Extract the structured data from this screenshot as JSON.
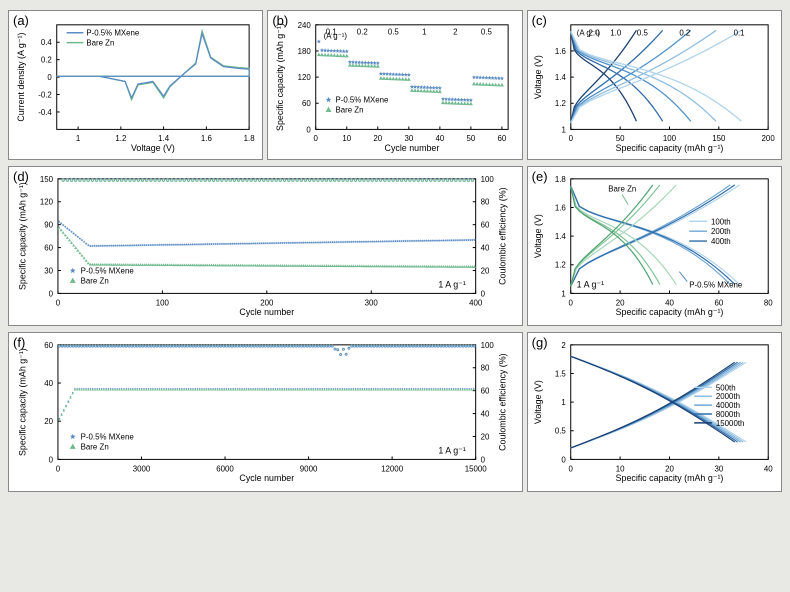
{
  "colors": {
    "mxene": "#5a8bc4",
    "zn": "#6fb98f",
    "axis": "#000000",
    "bg": "#ffffff",
    "page_bg": "#e8e8e4",
    "rate_colors": [
      "#afd3ec",
      "#8fbde0",
      "#6fa7d4",
      "#4f91c8",
      "#2f6ba8",
      "#1a3f70"
    ]
  },
  "panels": {
    "a": {
      "label": "(a)",
      "type": "line",
      "xlabel": "Voltage (V)",
      "ylabel": "Current density (A g⁻¹)",
      "xlim": [
        0.9,
        1.8
      ],
      "xticks": [
        1.0,
        1.2,
        1.4,
        1.6,
        1.8
      ],
      "ylim": [
        -0.6,
        0.6
      ],
      "yticks": [
        -0.4,
        -0.2,
        0.0,
        0.2,
        0.4
      ],
      "legend": [
        {
          "label": "P-0.5% MXene",
          "color": "#5a8bc4"
        },
        {
          "label": "Bare Zn",
          "color": "#6fb98f"
        }
      ],
      "series": {
        "mxene": [
          [
            0.9,
            0.01
          ],
          [
            1.1,
            0.01
          ],
          [
            1.22,
            -0.05
          ],
          [
            1.25,
            -0.24
          ],
          [
            1.28,
            -0.08
          ],
          [
            1.35,
            -0.05
          ],
          [
            1.4,
            -0.22
          ],
          [
            1.43,
            -0.1
          ],
          [
            1.5,
            0.05
          ],
          [
            1.55,
            0.15
          ],
          [
            1.58,
            0.5
          ],
          [
            1.62,
            0.22
          ],
          [
            1.68,
            0.12
          ],
          [
            1.75,
            0.1
          ],
          [
            1.8,
            0.09
          ],
          [
            1.8,
            0.01
          ],
          [
            0.9,
            0.01
          ]
        ],
        "zn": [
          [
            0.9,
            0.01
          ],
          [
            1.1,
            0.01
          ],
          [
            1.22,
            -0.05
          ],
          [
            1.25,
            -0.26
          ],
          [
            1.28,
            -0.09
          ],
          [
            1.35,
            -0.06
          ],
          [
            1.4,
            -0.24
          ],
          [
            1.43,
            -0.11
          ],
          [
            1.5,
            0.05
          ],
          [
            1.55,
            0.16
          ],
          [
            1.58,
            0.53
          ],
          [
            1.62,
            0.23
          ],
          [
            1.68,
            0.13
          ],
          [
            1.75,
            0.11
          ],
          [
            1.8,
            0.1
          ],
          [
            1.8,
            0.01
          ],
          [
            0.9,
            0.01
          ]
        ]
      }
    },
    "b": {
      "label": "(b)",
      "type": "scatter",
      "xlabel": "Cycle number",
      "ylabel": "Specific capacity (mAh g⁻¹)",
      "xlim": [
        0,
        62
      ],
      "xticks": [
        0,
        10,
        20,
        30,
        40,
        50,
        60
      ],
      "ylim": [
        0,
        240
      ],
      "yticks": [
        0,
        60,
        120,
        180,
        240
      ],
      "rate_labels": [
        "0.1",
        "0.2",
        "0.5",
        "1",
        "2",
        "0.5"
      ],
      "rate_header": "(A g⁻¹)",
      "legend": [
        {
          "label": "P-0.5% MXene",
          "color": "#5a8bc4",
          "marker": "star"
        },
        {
          "label": "Bare Zn",
          "color": "#6fb98f",
          "marker": "triangle"
        }
      ],
      "cycles_per_rate": 10,
      "mxene_caps": [
        182,
        155,
        128,
        98,
        70,
        120
      ],
      "zn_caps": [
        172,
        148,
        118,
        90,
        62,
        105
      ]
    },
    "c": {
      "label": "(c)",
      "type": "line",
      "xlabel": "Specific capacity (mAh g⁻¹)",
      "ylabel": "Voltage (V)",
      "xlim": [
        0,
        200
      ],
      "xticks": [
        0,
        50,
        100,
        150,
        200
      ],
      "ylim": [
        1.0,
        1.8
      ],
      "yticks": [
        1.0,
        1.2,
        1.4,
        1.6
      ],
      "rate_header": "(A g⁻¹)",
      "rates": [
        "2.0",
        "1.0",
        "0.5",
        "0.2",
        "0.1"
      ],
      "caps": [
        70,
        98,
        128,
        155,
        182
      ],
      "colors": [
        "#1a3f70",
        "#2f6ba8",
        "#4f91c8",
        "#8fbde0",
        "#afd3ec"
      ]
    },
    "d": {
      "label": "(d)",
      "type": "scatter-dual",
      "xlabel": "Cycle number",
      "ylabel": "Specific capacity (mAh g⁻¹)",
      "ylabel2": "Coulombic efficiency (%)",
      "xlim": [
        0,
        400
      ],
      "xticks": [
        0,
        100,
        200,
        300,
        400
      ],
      "ylim": [
        0,
        150
      ],
      "yticks": [
        0,
        30,
        60,
        90,
        120,
        150
      ],
      "y2lim": [
        0,
        100
      ],
      "condition": "1 A g⁻¹",
      "legend": [
        {
          "label": "P-0.5% MXene",
          "color": "#5a8bc4",
          "marker": "star"
        },
        {
          "label": "Bare Zn",
          "color": "#6fb98f",
          "marker": "triangle"
        }
      ],
      "mxene_start": 95,
      "mxene_mid": 62,
      "mxene_end": 70,
      "zn_start": 88,
      "zn_mid": 38,
      "zn_end": 35,
      "ce": 99
    },
    "e": {
      "label": "(e)",
      "type": "line",
      "xlabel": "Specific capacity (mAh g⁻¹)",
      "ylabel": "Voltage (V)",
      "xlim": [
        0,
        80
      ],
      "xticks": [
        0,
        20,
        40,
        60,
        80
      ],
      "ylim": [
        1.0,
        1.8
      ],
      "yticks": [
        1.0,
        1.2,
        1.4,
        1.6,
        1.8
      ],
      "condition": "1 A g⁻¹",
      "annotations": [
        {
          "text": "Bare Zn",
          "color": "#6fb98f"
        },
        {
          "text": "P-0.5% MXene",
          "color": "#5a8bc4"
        }
      ],
      "cycles_legend": [
        {
          "label": "100th",
          "color": "#afd3ec"
        },
        {
          "label": "200th",
          "color": "#6fa7d4"
        },
        {
          "label": "400th",
          "color": "#2f6ba8"
        }
      ],
      "mxene_caps": [
        72,
        68,
        70
      ],
      "zn_caps": [
        45,
        38,
        35
      ]
    },
    "f": {
      "label": "(f)",
      "type": "scatter-dual",
      "xlabel": "Cycle number",
      "ylabel": "Specific capacity (mAh g⁻¹)",
      "ylabel2": "Coulombic efficiency (%)",
      "xlim": [
        0,
        15000
      ],
      "xticks": [
        0,
        3000,
        6000,
        9000,
        12000,
        15000
      ],
      "ylim": [
        0,
        60
      ],
      "yticks": [
        0,
        20,
        40,
        60
      ],
      "y2lim": [
        0,
        100
      ],
      "condition": "1 A g⁻¹",
      "legend": [
        {
          "label": "P-0.5% MXene",
          "color": "#5a8bc4",
          "marker": "star"
        },
        {
          "label": "Bare Zn",
          "color": "#6fb98f",
          "marker": "triangle"
        }
      ],
      "capacity_level": 37,
      "ce": 99,
      "dip_x": 10200
    },
    "g": {
      "label": "(g)",
      "type": "line",
      "xlabel": "Specific capacity (mAh g⁻¹)",
      "ylabel": "Voltage (V)",
      "xlim": [
        0,
        40
      ],
      "xticks": [
        0,
        10,
        20,
        30,
        40
      ],
      "ylim": [
        0.0,
        2.0
      ],
      "yticks": [
        0.0,
        0.5,
        1.0,
        1.5,
        2.0
      ],
      "cycles_legend": [
        {
          "label": "500th",
          "color": "#afd3ec"
        },
        {
          "label": "2000th",
          "color": "#8fbde0"
        },
        {
          "label": "4000th",
          "color": "#6fa7d4"
        },
        {
          "label": "8000th",
          "color": "#2f6ba8"
        },
        {
          "label": "15000th",
          "color": "#1a3f70"
        }
      ],
      "cap": 37
    }
  }
}
